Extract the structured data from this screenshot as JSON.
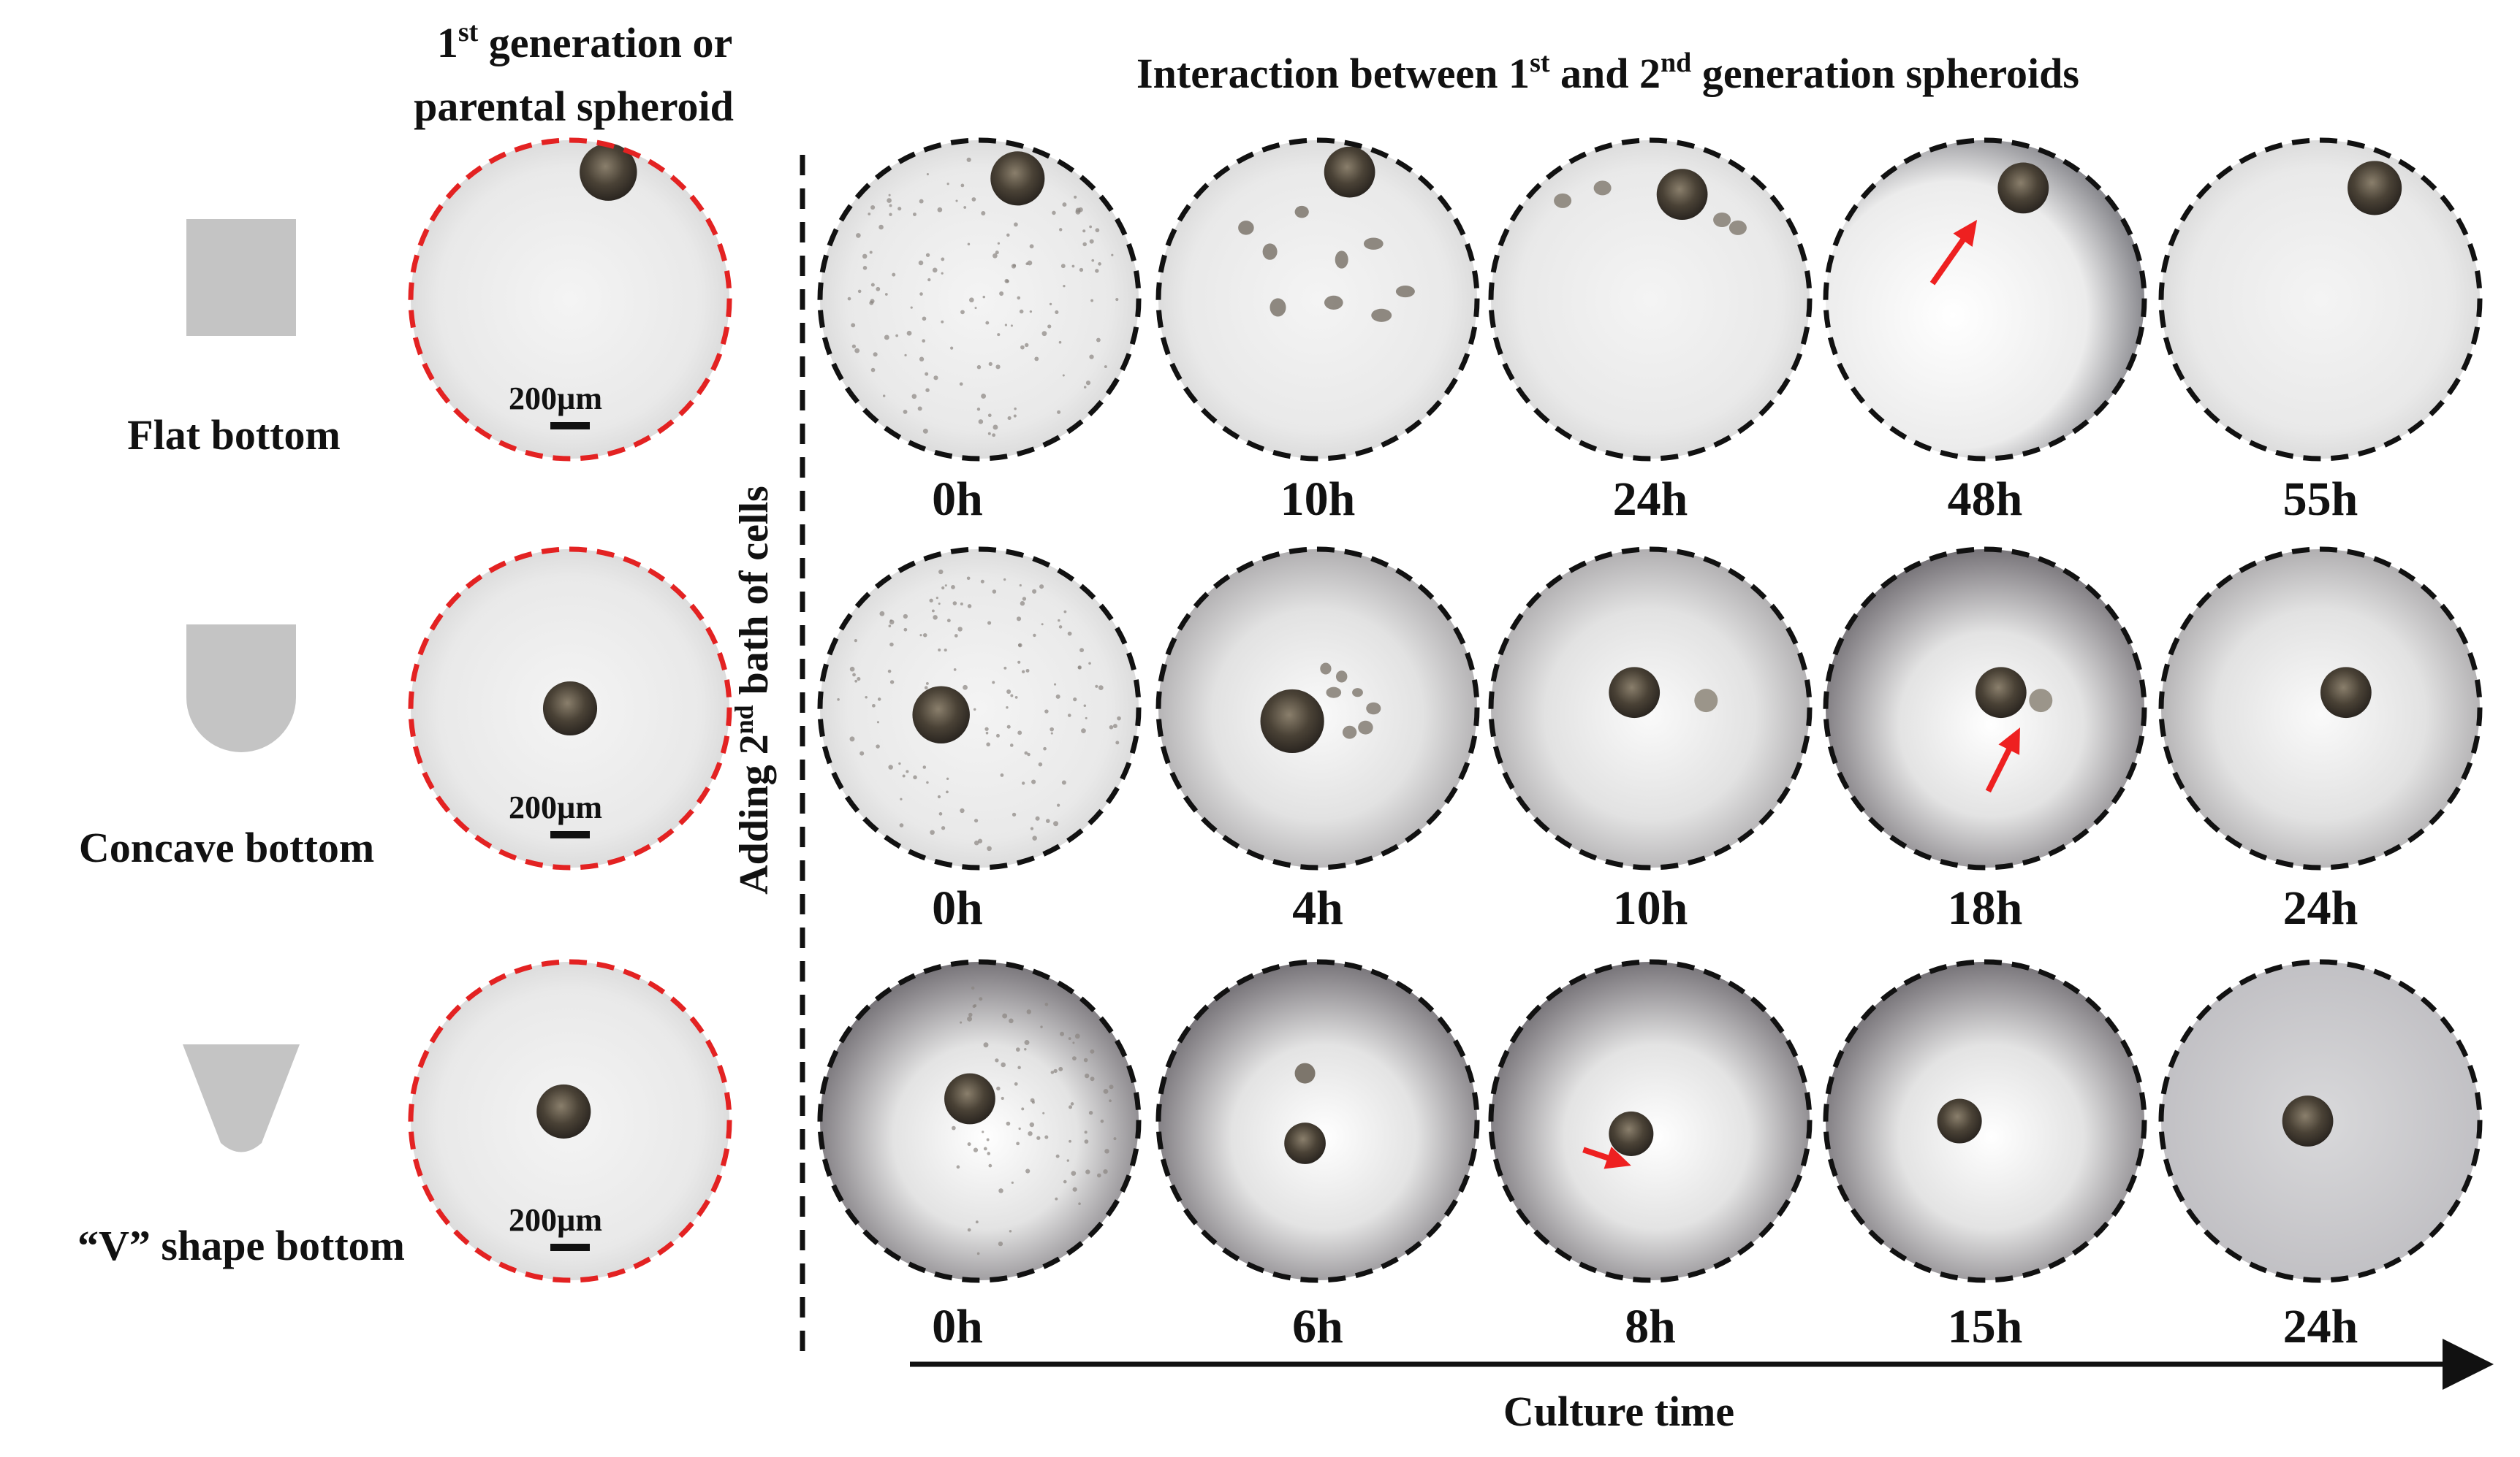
{
  "header": {
    "parental_title_line1": {
      "pre": "1",
      "sup": "st",
      "post": " generation or"
    },
    "parental_title_line2": "parental spheroid",
    "interaction_title": {
      "a": "Interaction between 1",
      "sup1": "st",
      "b": " and 2",
      "sup2": "nd",
      "c": " generation spheroids"
    }
  },
  "vertical_label": {
    "pre": "Adding  2",
    "sup": "nd",
    "post": " bath of cells"
  },
  "scale_bar_label": "200µm",
  "rows": [
    {
      "bottom_label": "Flat bottom",
      "shape": "flat",
      "parental": {
        "spheroid": [
          0.62,
          0.1
        ],
        "size": 0.18,
        "tone": "light"
      },
      "timepoints": [
        {
          "label": "0h",
          "tone": "light",
          "spheroid": [
            0.62,
            0.12
          ],
          "size": 0.17,
          "debris": "scattered",
          "arrow": null
        },
        {
          "label": "10h",
          "tone": "light",
          "spheroid": [
            0.6,
            0.1
          ],
          "size": 0.16,
          "debris": "clumps",
          "arrow": null
        },
        {
          "label": "24h",
          "tone": "light",
          "spheroid": [
            0.6,
            0.17
          ],
          "size": 0.16,
          "debris": "few-top",
          "arrow": null
        },
        {
          "label": "48h",
          "tone": "shadow-right",
          "spheroid": [
            0.62,
            0.15
          ],
          "size": 0.16,
          "debris": "none",
          "arrow": "up-left-to-top"
        },
        {
          "label": "55h",
          "tone": "light",
          "spheroid": [
            0.67,
            0.15
          ],
          "size": 0.17,
          "debris": "none",
          "arrow": null
        }
      ]
    },
    {
      "bottom_label": "Concave bottom",
      "shape": "concave",
      "parental": {
        "spheroid": [
          0.5,
          0.5
        ],
        "size": 0.17,
        "tone": "light"
      },
      "timepoints": [
        {
          "label": "0h",
          "tone": "light",
          "spheroid": [
            0.38,
            0.52
          ],
          "size": 0.18,
          "debris": "scattered",
          "arrow": null
        },
        {
          "label": "4h",
          "tone": "medium",
          "spheroid": [
            0.42,
            0.54
          ],
          "size": 0.2,
          "debris": "clumps-center",
          "arrow": null
        },
        {
          "label": "10h",
          "tone": "medium",
          "spheroid": [
            0.45,
            0.45
          ],
          "size": 0.16,
          "debris": "small-right",
          "arrow": null
        },
        {
          "label": "18h",
          "tone": "dark",
          "spheroid": [
            0.55,
            0.45
          ],
          "size": 0.16,
          "debris": "small-right",
          "arrow": "up-right-to-bottom"
        },
        {
          "label": "24h",
          "tone": "medium",
          "spheroid": [
            0.58,
            0.45
          ],
          "size": 0.16,
          "debris": "none",
          "arrow": null
        }
      ]
    },
    {
      "bottom_label": "“V” shape bottom",
      "shape": "v",
      "parental": {
        "spheroid": [
          0.48,
          0.47
        ],
        "size": 0.17,
        "tone": "light"
      },
      "timepoints": [
        {
          "label": "0h",
          "tone": "dark",
          "spheroid": [
            0.47,
            0.43
          ],
          "size": 0.16,
          "debris": "scattered-right",
          "arrow": null
        },
        {
          "label": "6h",
          "tone": "dark",
          "spheroid": [
            0.46,
            0.57
          ],
          "size": 0.13,
          "debris": "small-top",
          "arrow": null
        },
        {
          "label": "8h",
          "tone": "dark",
          "spheroid": [
            0.44,
            0.54
          ],
          "size": 0.14,
          "debris": "none",
          "arrow": "right-to-left"
        },
        {
          "label": "15h",
          "tone": "dark",
          "spheroid": [
            0.42,
            0.5
          ],
          "size": 0.14,
          "debris": "none",
          "arrow": null
        },
        {
          "label": "24h",
          "tone": "flat-grey",
          "spheroid": [
            0.46,
            0.5
          ],
          "size": 0.16,
          "debris": "none",
          "arrow": null
        }
      ]
    }
  ],
  "time_axis_label": "Culture time",
  "colors": {
    "parental_border": "#e32222",
    "timepoint_border": "#111111",
    "arrow": "#ee2020",
    "shape_fill": "#c4c4c4",
    "spheroid": "#4a4236"
  }
}
